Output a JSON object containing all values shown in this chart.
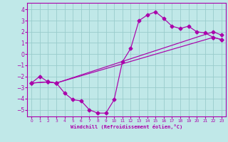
{
  "bg_color": "#c0e8e8",
  "line_color": "#aa00aa",
  "grid_color": "#99cccc",
  "xlabel": "Windchill (Refroidissement éolien,°C)",
  "xlim": [
    -0.5,
    23.5
  ],
  "ylim": [
    -5.6,
    4.6
  ],
  "yticks": [
    -5,
    -4,
    -3,
    -2,
    -1,
    0,
    1,
    2,
    3,
    4
  ],
  "xticks": [
    0,
    1,
    2,
    3,
    4,
    5,
    6,
    7,
    8,
    9,
    10,
    11,
    12,
    13,
    14,
    15,
    16,
    17,
    18,
    19,
    20,
    21,
    22,
    23
  ],
  "curve1_x": [
    0,
    1,
    2,
    3,
    4,
    5,
    6,
    7,
    8,
    9,
    10,
    11,
    12,
    13,
    14,
    15,
    16,
    17,
    18,
    19,
    20,
    21,
    22,
    23
  ],
  "curve1_y": [
    -2.6,
    -2.0,
    -2.5,
    -2.6,
    -3.5,
    -4.1,
    -4.2,
    -5.0,
    -5.3,
    -5.3,
    -4.1,
    -0.7,
    0.5,
    3.0,
    3.5,
    3.8,
    3.2,
    2.5,
    2.3,
    2.5,
    2.0,
    1.9,
    1.5,
    1.3
  ],
  "curve2_x": [
    0,
    2,
    3,
    22,
    23
  ],
  "curve2_y": [
    -2.6,
    -2.5,
    -2.6,
    2.0,
    1.7
  ],
  "curve3_x": [
    0,
    2,
    3,
    22,
    23
  ],
  "curve3_y": [
    -2.6,
    -2.5,
    -2.6,
    1.5,
    1.3
  ]
}
